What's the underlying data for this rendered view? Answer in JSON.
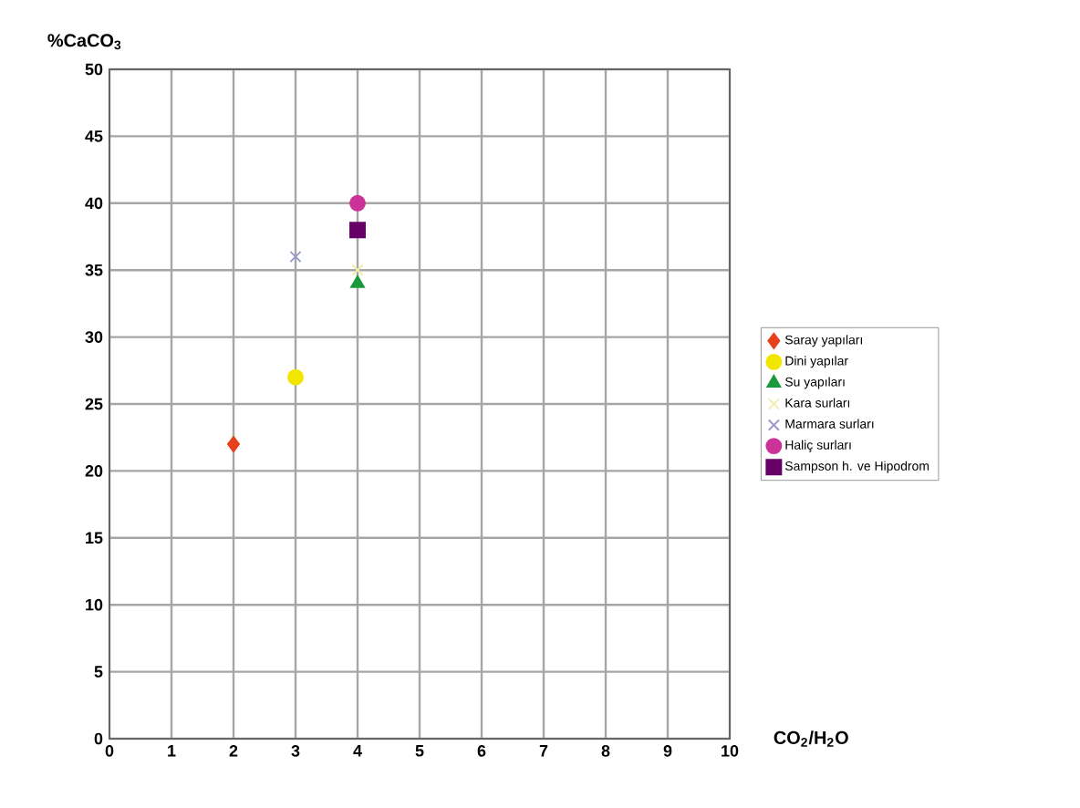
{
  "chart_data": {
    "type": "scatter",
    "xlabel": "CO$_{2}$/H$_{2}$O",
    "ylabel": "%CaCO$_{3}$",
    "xlim": [
      0,
      10
    ],
    "xticks": [
      0,
      1,
      2,
      3,
      4,
      5,
      6,
      7,
      8,
      9,
      10
    ],
    "ylim": [
      0,
      50
    ],
    "yticks": [
      0,
      5,
      10,
      15,
      20,
      25,
      30,
      35,
      40,
      45,
      50
    ],
    "grid": true,
    "legend": "right",
    "series": [
      {
        "name": "Saray yapıları",
        "color": "#e8401c",
        "marker": "diamond",
        "x": [
          2
        ],
        "values": [
          22
        ]
      },
      {
        "name": "Dini yapılar",
        "color": "#f2e600",
        "marker": "circle",
        "x": [
          3
        ],
        "values": [
          27
        ]
      },
      {
        "name": "Su yapıları",
        "color": "#1a9a3a",
        "marker": "triangle",
        "x": [
          4
        ],
        "values": [
          34
        ]
      },
      {
        "name": "Kara surları",
        "color": "#f0eeaa",
        "marker": "cross",
        "x": [
          4
        ],
        "values": [
          35
        ]
      },
      {
        "name": "Marmara surları",
        "color": "#9a9acc",
        "marker": "cross",
        "x": [
          3
        ],
        "values": [
          36
        ]
      },
      {
        "name": "Haliç surları",
        "color": "#cc3399",
        "marker": "circle",
        "x": [
          4
        ],
        "values": [
          40
        ]
      },
      {
        "name": "Sampson h. ve Hipodrom",
        "color": "#660066",
        "marker": "square",
        "x": [
          4
        ],
        "values": [
          38
        ]
      }
    ]
  }
}
